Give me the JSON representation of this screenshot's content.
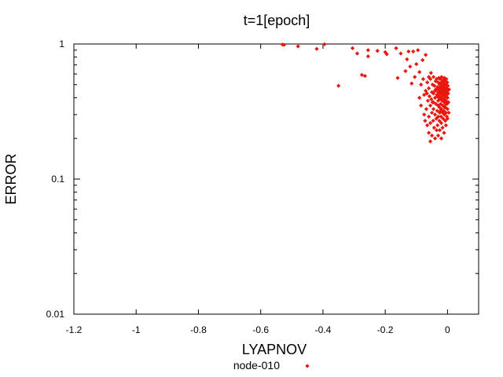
{
  "chart_data": {
    "type": "scatter",
    "title": "t=1[epoch]",
    "xlabel": "LYAPNOV",
    "ylabel": "ERROR",
    "xlim": [
      -1.2,
      0.1
    ],
    "ylim": [
      0.01,
      1
    ],
    "y_scale": "log",
    "x_ticks": [
      -1.2,
      -1,
      -0.8,
      -0.6,
      -0.4,
      -0.2,
      0
    ],
    "x_tick_labels": [
      "-1.2",
      "-1",
      "-0.8",
      "-0.6",
      "-0.4",
      "-0.2",
      "0"
    ],
    "y_ticks": [
      0.01,
      0.1,
      1
    ],
    "y_tick_labels": [
      "0.01",
      "0.1",
      "1"
    ],
    "grid": false,
    "legend_position": "bottom-center",
    "series": [
      {
        "name": "node-010",
        "color": "#e8190f",
        "marker": "diamond-dot",
        "points": [
          [
            -0.53,
            0.99
          ],
          [
            -0.525,
            0.985
          ],
          [
            -0.48,
            0.96
          ],
          [
            -0.42,
            0.92
          ],
          [
            -0.395,
            0.995
          ],
          [
            -0.35,
            0.49
          ],
          [
            -0.305,
            0.93
          ],
          [
            -0.29,
            0.85
          ],
          [
            -0.275,
            0.59
          ],
          [
            -0.265,
            0.58
          ],
          [
            -0.255,
            0.81
          ],
          [
            -0.255,
            0.9
          ],
          [
            -0.225,
            0.89
          ],
          [
            -0.2,
            0.87
          ],
          [
            -0.195,
            0.84
          ],
          [
            -0.165,
            0.93
          ],
          [
            -0.16,
            0.56
          ],
          [
            -0.15,
            0.85
          ],
          [
            -0.135,
            0.63
          ],
          [
            -0.13,
            0.77
          ],
          [
            -0.125,
            0.88
          ],
          [
            -0.12,
            0.68
          ],
          [
            -0.115,
            0.51
          ],
          [
            -0.11,
            0.88
          ],
          [
            -0.105,
            0.57
          ],
          [
            -0.1,
            0.71
          ],
          [
            -0.095,
            0.9
          ],
          [
            -0.09,
            0.62
          ],
          [
            -0.09,
            0.4
          ],
          [
            -0.085,
            0.5
          ],
          [
            -0.085,
            0.35
          ],
          [
            -0.08,
            0.76
          ],
          [
            -0.078,
            0.55
          ],
          [
            -0.075,
            0.42
          ],
          [
            -0.075,
            0.3
          ],
          [
            -0.072,
            0.27
          ],
          [
            -0.07,
            0.45
          ],
          [
            -0.07,
            0.83
          ],
          [
            -0.068,
            0.33
          ],
          [
            -0.065,
            0.52
          ],
          [
            -0.065,
            0.25
          ],
          [
            -0.063,
            0.38
          ],
          [
            -0.06,
            0.47
          ],
          [
            -0.06,
            0.29
          ],
          [
            -0.06,
            0.22
          ],
          [
            -0.058,
            0.41
          ],
          [
            -0.055,
            0.55
          ],
          [
            -0.055,
            0.35
          ],
          [
            -0.055,
            0.26
          ],
          [
            -0.053,
            0.61
          ],
          [
            -0.05,
            0.44
          ],
          [
            -0.05,
            0.31
          ],
          [
            -0.05,
            0.21
          ],
          [
            -0.048,
            0.5
          ],
          [
            -0.048,
            0.37
          ],
          [
            -0.046,
            0.27
          ],
          [
            -0.045,
            0.57
          ],
          [
            -0.045,
            0.43
          ],
          [
            -0.045,
            0.33
          ],
          [
            -0.043,
            0.24
          ],
          [
            -0.042,
            0.49
          ],
          [
            -0.04,
            0.4
          ],
          [
            -0.04,
            0.3
          ],
          [
            -0.04,
            0.2
          ],
          [
            -0.038,
            0.53
          ],
          [
            -0.038,
            0.46
          ],
          [
            -0.037,
            0.36
          ],
          [
            -0.036,
            0.28
          ],
          [
            -0.035,
            0.23
          ],
          [
            -0.035,
            0.55
          ],
          [
            -0.034,
            0.42
          ],
          [
            -0.033,
            0.32
          ],
          [
            -0.032,
            0.48
          ],
          [
            -0.032,
            0.25
          ],
          [
            -0.03,
            0.52
          ],
          [
            -0.03,
            0.44
          ],
          [
            -0.03,
            0.38
          ],
          [
            -0.03,
            0.29
          ],
          [
            -0.03,
            0.21
          ],
          [
            -0.028,
            0.56
          ],
          [
            -0.028,
            0.47
          ],
          [
            -0.027,
            0.41
          ],
          [
            -0.026,
            0.34
          ],
          [
            -0.026,
            0.27
          ],
          [
            -0.025,
            0.5
          ],
          [
            -0.025,
            0.45
          ],
          [
            -0.025,
            0.39
          ],
          [
            -0.025,
            0.31
          ],
          [
            -0.025,
            0.23
          ],
          [
            -0.024,
            0.55
          ],
          [
            -0.023,
            0.48
          ],
          [
            -0.022,
            0.43
          ],
          [
            -0.022,
            0.36
          ],
          [
            -0.021,
            0.29
          ],
          [
            -0.02,
            0.52
          ],
          [
            -0.02,
            0.46
          ],
          [
            -0.02,
            0.4
          ],
          [
            -0.02,
            0.33
          ],
          [
            -0.02,
            0.26
          ],
          [
            -0.02,
            0.2
          ],
          [
            -0.019,
            0.57
          ],
          [
            -0.018,
            0.49
          ],
          [
            -0.018,
            0.44
          ],
          [
            -0.017,
            0.38
          ],
          [
            -0.016,
            0.31
          ],
          [
            -0.016,
            0.24
          ],
          [
            -0.015,
            0.54
          ],
          [
            -0.015,
            0.47
          ],
          [
            -0.015,
            0.42
          ],
          [
            -0.015,
            0.35
          ],
          [
            -0.014,
            0.28
          ],
          [
            -0.013,
            0.51
          ],
          [
            -0.012,
            0.45
          ],
          [
            -0.012,
            0.39
          ],
          [
            -0.012,
            0.32
          ],
          [
            -0.011,
            0.22
          ],
          [
            -0.01,
            0.56
          ],
          [
            -0.01,
            0.48
          ],
          [
            -0.01,
            0.43
          ],
          [
            -0.01,
            0.37
          ],
          [
            -0.01,
            0.3
          ],
          [
            -0.009,
            0.53
          ],
          [
            -0.008,
            0.46
          ],
          [
            -0.008,
            0.41
          ],
          [
            -0.007,
            0.34
          ],
          [
            -0.007,
            0.27
          ],
          [
            -0.006,
            0.5
          ],
          [
            -0.005,
            0.44
          ],
          [
            -0.005,
            0.38
          ],
          [
            -0.005,
            0.31
          ],
          [
            -0.005,
            0.25
          ],
          [
            -0.004,
            0.55
          ],
          [
            -0.003,
            0.47
          ],
          [
            -0.003,
            0.42
          ],
          [
            -0.002,
            0.36
          ],
          [
            -0.002,
            0.29
          ],
          [
            -0.001,
            0.52
          ],
          [
            0,
            0.45
          ],
          [
            0,
            0.4
          ],
          [
            0,
            0.33
          ],
          [
            0,
            0.28
          ],
          [
            0.001,
            0.49
          ],
          [
            0.002,
            0.43
          ],
          [
            0.003,
            0.37
          ],
          [
            0.004,
            0.31
          ],
          [
            0.005,
            0.46
          ],
          [
            -0.06,
            0.57
          ],
          [
            -0.055,
            0.19
          ],
          [
            -0.045,
            0.37
          ],
          [
            -0.035,
            0.46
          ],
          [
            -0.028,
            0.4
          ],
          [
            -0.018,
            0.41
          ],
          [
            -0.012,
            0.49
          ],
          [
            -0.008,
            0.4
          ],
          [
            -0.004,
            0.44
          ],
          [
            -0.016,
            0.45
          ],
          [
            -0.024,
            0.43
          ],
          [
            -0.032,
            0.41
          ],
          [
            -0.04,
            0.45
          ],
          [
            -0.052,
            0.39
          ],
          [
            -0.066,
            0.43
          ],
          [
            -0.03,
            0.35
          ],
          [
            -0.022,
            0.32
          ],
          [
            -0.015,
            0.38
          ],
          [
            -0.01,
            0.34
          ],
          [
            -0.006,
            0.36
          ]
        ]
      }
    ]
  }
}
